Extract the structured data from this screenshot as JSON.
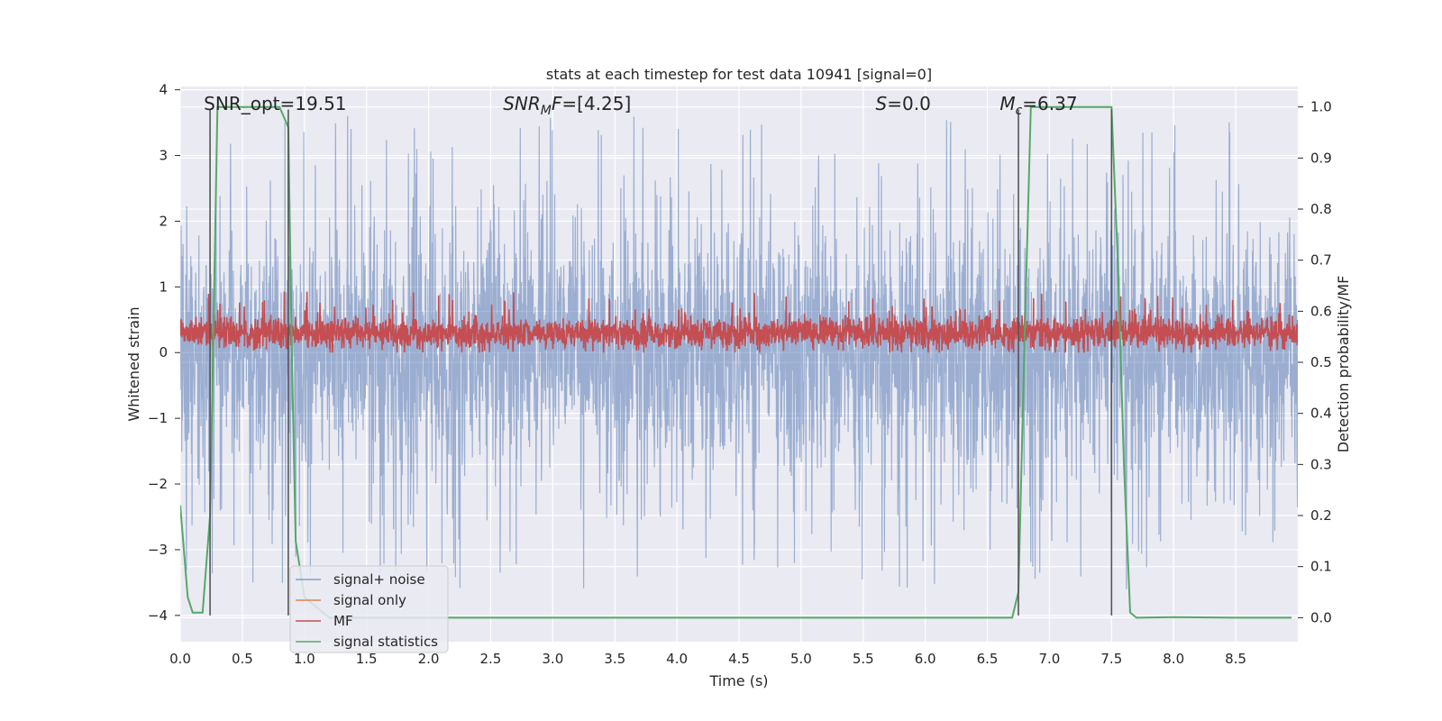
{
  "chart_data": {
    "type": "line",
    "title": "stats at each timestep for test data 10941 [signal=0]",
    "xlabel": "Time (s)",
    "ylabel": "Whitened strain",
    "y2label": "Detection probability/MF",
    "xlim": [
      0.0,
      9.0
    ],
    "ylim": [
      -4.4,
      4.05
    ],
    "y2lim": [
      -0.047,
      1.04
    ],
    "xticks": [
      "0.0",
      "0.5",
      "1.0",
      "1.5",
      "2.0",
      "2.5",
      "3.0",
      "3.5",
      "4.0",
      "4.5",
      "5.0",
      "5.5",
      "6.0",
      "6.5",
      "7.0",
      "7.5",
      "8.0",
      "8.5"
    ],
    "yticks": [
      "−4",
      "−3",
      "−2",
      "−1",
      "0",
      "1",
      "2",
      "3",
      "4"
    ],
    "y2ticks": [
      "0.0",
      "0.1",
      "0.2",
      "0.3",
      "0.4",
      "0.5",
      "0.6",
      "0.7",
      "0.8",
      "0.9",
      "1.0"
    ],
    "grid": true,
    "legend_position": "lower-left",
    "annotations": [
      {
        "parts": [
          {
            "t": "SNR_opt=19.51",
            "style": "normal"
          }
        ]
      },
      {
        "parts": [
          {
            "t": "SNR",
            "style": "italic"
          },
          {
            "t": "M",
            "style": "italic-sub"
          },
          {
            "t": "F",
            "style": "italic"
          },
          {
            "t": "=[4.25]",
            "style": "normal"
          }
        ]
      },
      {
        "parts": [
          {
            "t": "S",
            "style": "italic"
          },
          {
            "t": "=0.0",
            "style": "normal"
          }
        ]
      },
      {
        "parts": [
          {
            "t": "M",
            "style": "italic"
          },
          {
            "t": "c",
            "style": "italic-sub"
          },
          {
            "t": "=6.37",
            "style": "normal"
          }
        ]
      }
    ],
    "vertical_lines_x": [
      0.24,
      0.87,
      6.75,
      7.5
    ],
    "series": [
      {
        "name": "signal+ noise",
        "color": "#4c72b0",
        "opacity": 0.5,
        "kind": "noise",
        "x_range": [
          0.0,
          9.0
        ],
        "samples": 3600,
        "envelope_y": [
          -2.0,
          2.1
        ],
        "peak_y": [
          -4.0,
          3.6
        ]
      },
      {
        "name": "signal only",
        "color": "#dd8452",
        "values": []
      },
      {
        "name": "MF",
        "color": "#c44e52",
        "kind": "noise-positive",
        "x_range": [
          0.0,
          9.0
        ],
        "samples": 3600,
        "range_y": [
          0.0,
          0.93
        ],
        "mean_y": 0.3
      },
      {
        "name": "signal statistics",
        "color": "#55a868",
        "axis": "y2",
        "x": [
          0.0,
          0.06,
          0.1,
          0.18,
          0.24,
          0.27,
          0.3,
          0.33,
          0.4,
          0.6,
          0.8,
          0.87,
          0.9,
          0.93,
          1.0,
          1.1,
          1.2,
          1.3,
          1.5,
          2.0,
          3.0,
          4.0,
          5.0,
          6.0,
          6.5,
          6.7,
          6.75,
          6.8,
          6.85,
          7.0,
          7.3,
          7.45,
          7.5,
          7.55,
          7.6,
          7.65,
          7.7,
          8.0,
          8.5,
          8.95
        ],
        "values": [
          0.22,
          0.04,
          0.01,
          0.01,
          0.2,
          0.6,
          1.0,
          1.0,
          1.0,
          1.0,
          1.0,
          0.96,
          0.5,
          0.15,
          0.04,
          0.02,
          0.0,
          0.0,
          0.0,
          0.0,
          0.0,
          0.0,
          0.0,
          0.0,
          0.0,
          0.0,
          0.05,
          0.55,
          1.0,
          1.0,
          1.0,
          1.0,
          1.0,
          0.7,
          0.3,
          0.01,
          0.0,
          0.001,
          0.0,
          0.0
        ]
      }
    ]
  }
}
